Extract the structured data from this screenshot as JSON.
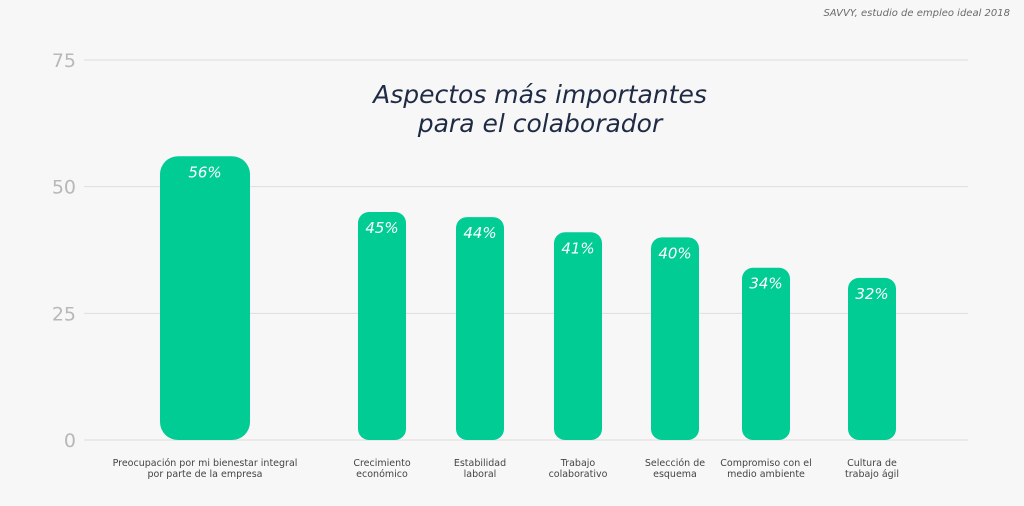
{
  "source_note": "SAVVY, estudio de empleo ideal 2018",
  "colors": {
    "bar": "#00cc93",
    "bar_label": "#ffffff",
    "tick": "#b8b8b8",
    "grid": "#dedede",
    "category": "#444444",
    "title": "#1f2b44",
    "background": "#f7f7f7"
  },
  "chart_data": {
    "type": "bar",
    "title_lines": [
      "Aspectos más importantes",
      "para el colaborador"
    ],
    "categories": [
      [
        "Preocupación por mi bienestar integral",
        "por parte de la empresa"
      ],
      [
        "Crecimiento",
        "económico"
      ],
      [
        "Estabilidad",
        "laboral"
      ],
      [
        "Trabajo",
        "colaborativo"
      ],
      [
        "Selección de",
        "esquema"
      ],
      [
        "Compromiso con el",
        "medio ambiente"
      ],
      [
        "Cultura de",
        "trabajo ágil"
      ]
    ],
    "values": [
      56,
      45,
      44,
      41,
      40,
      34,
      32
    ],
    "value_labels": [
      "56%",
      "45%",
      "44%",
      "41%",
      "40%",
      "34%",
      "32%"
    ],
    "yticks": [
      0,
      25,
      50,
      75
    ],
    "ylim": [
      0,
      75
    ],
    "grid": true,
    "legend": false
  }
}
